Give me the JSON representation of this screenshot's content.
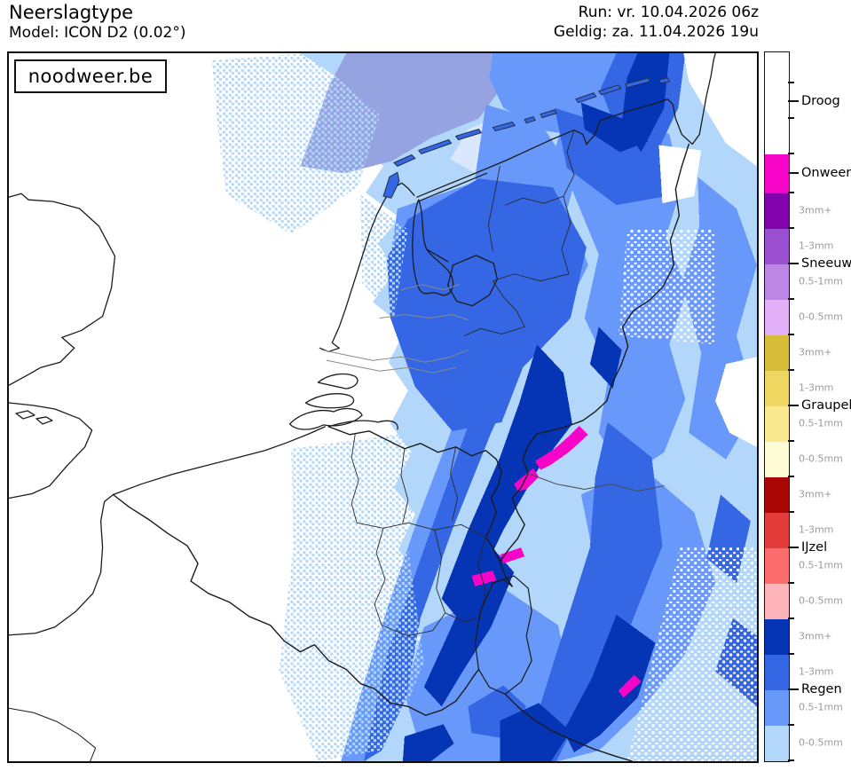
{
  "header": {
    "title": "Neerslagtype",
    "model": "Model: ICON D2 (0.02°)",
    "run": "Run: vr. 10.04.2026 06z",
    "valid": "Geldig: za. 11.04.2026 19u"
  },
  "watermark": "noodweer.be",
  "legend": {
    "droog": {
      "label": "Droog",
      "color": "#ffffff"
    },
    "onweer": {
      "label": "Onweer",
      "color": "#f704c9"
    },
    "groups": [
      {
        "label": "Sneeuw",
        "bands": [
          {
            "label": "3mm+",
            "color": "#8203ac"
          },
          {
            "label": "1-3mm",
            "color": "#9a4fd0"
          },
          {
            "label": "0.5-1mm",
            "color": "#bd86e4"
          },
          {
            "label": "0-0.5mm",
            "color": "#e2b0f6"
          }
        ]
      },
      {
        "label": "Graupel",
        "bands": [
          {
            "label": "3mm+",
            "color": "#d5bd3a"
          },
          {
            "label": "1-3mm",
            "color": "#efd660"
          },
          {
            "label": "0.5-1mm",
            "color": "#fce98f"
          },
          {
            "label": "0-0.5mm",
            "color": "#fefbd5"
          }
        ]
      },
      {
        "label": "IJzel",
        "bands": [
          {
            "label": "3mm+",
            "color": "#aa0606"
          },
          {
            "label": "1-3mm",
            "color": "#e43b3b"
          },
          {
            "label": "0.5-1mm",
            "color": "#fd6c6c"
          },
          {
            "label": "0-0.5mm",
            "color": "#ffb4b9"
          }
        ]
      },
      {
        "label": "Regen",
        "bands": [
          {
            "label": "3mm+",
            "color": "#0534b5"
          },
          {
            "label": "1-3mm",
            "color": "#3566e3"
          },
          {
            "label": "0.5-1mm",
            "color": "#6798fa"
          },
          {
            "label": "0-0.5mm",
            "color": "#b3d7fa"
          }
        ]
      }
    ]
  },
  "map": {
    "ink": "#1b1b1b",
    "sea_haze": "#95a4e1",
    "pale_ice": "#dbe7fc",
    "thunder": "#f704c9"
  }
}
